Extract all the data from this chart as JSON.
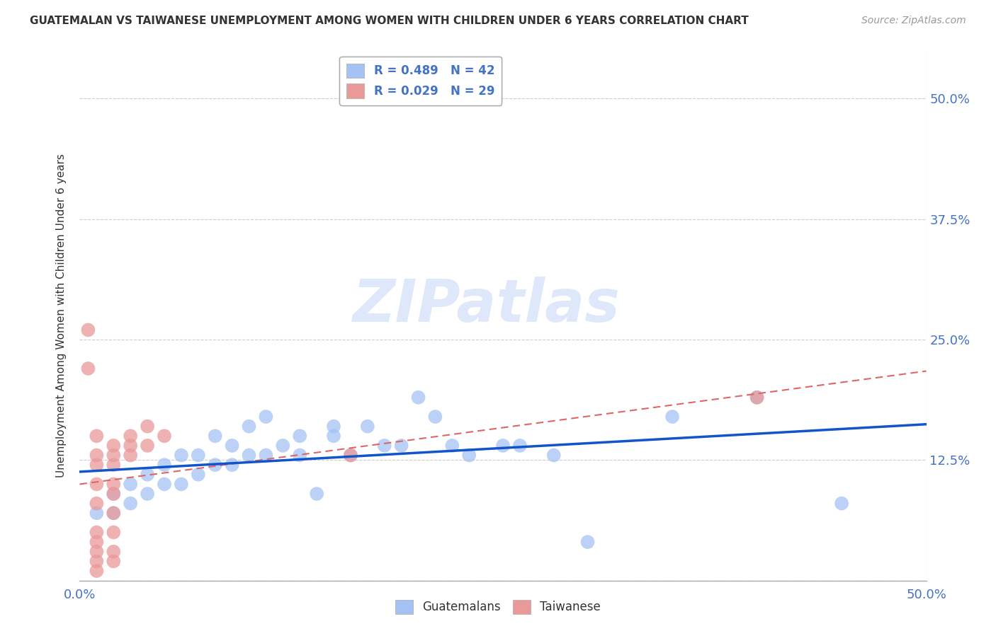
{
  "title": "GUATEMALAN VS TAIWANESE UNEMPLOYMENT AMONG WOMEN WITH CHILDREN UNDER 6 YEARS CORRELATION CHART",
  "source": "Source: ZipAtlas.com",
  "ylabel": "Unemployment Among Women with Children Under 6 years",
  "xlim": [
    0.0,
    0.5
  ],
  "ylim": [
    0.0,
    0.55
  ],
  "legend_guatemalans": "R = 0.489   N = 42",
  "legend_taiwanese": "R = 0.029   N = 29",
  "guatemalan_color": "#a4c2f4",
  "taiwanese_color": "#ea9999",
  "guatemalan_line_color": "#1155cc",
  "taiwanese_line_color": "#e06666",
  "watermark_text": "ZIPatlas",
  "guatemalan_points": [
    [
      0.01,
      0.07
    ],
    [
      0.02,
      0.07
    ],
    [
      0.02,
      0.09
    ],
    [
      0.03,
      0.08
    ],
    [
      0.03,
      0.1
    ],
    [
      0.04,
      0.09
    ],
    [
      0.04,
      0.11
    ],
    [
      0.05,
      0.1
    ],
    [
      0.05,
      0.12
    ],
    [
      0.06,
      0.1
    ],
    [
      0.06,
      0.13
    ],
    [
      0.07,
      0.11
    ],
    [
      0.07,
      0.13
    ],
    [
      0.08,
      0.12
    ],
    [
      0.08,
      0.15
    ],
    [
      0.09,
      0.12
    ],
    [
      0.09,
      0.14
    ],
    [
      0.1,
      0.13
    ],
    [
      0.1,
      0.16
    ],
    [
      0.11,
      0.13
    ],
    [
      0.11,
      0.17
    ],
    [
      0.12,
      0.14
    ],
    [
      0.13,
      0.13
    ],
    [
      0.13,
      0.15
    ],
    [
      0.14,
      0.09
    ],
    [
      0.15,
      0.15
    ],
    [
      0.15,
      0.16
    ],
    [
      0.16,
      0.13
    ],
    [
      0.17,
      0.16
    ],
    [
      0.18,
      0.14
    ],
    [
      0.19,
      0.14
    ],
    [
      0.2,
      0.19
    ],
    [
      0.21,
      0.17
    ],
    [
      0.22,
      0.14
    ],
    [
      0.23,
      0.13
    ],
    [
      0.25,
      0.14
    ],
    [
      0.26,
      0.14
    ],
    [
      0.28,
      0.13
    ],
    [
      0.3,
      0.04
    ],
    [
      0.35,
      0.17
    ],
    [
      0.4,
      0.19
    ],
    [
      0.45,
      0.08
    ]
  ],
  "taiwanese_points": [
    [
      0.005,
      0.26
    ],
    [
      0.005,
      0.22
    ],
    [
      0.01,
      0.15
    ],
    [
      0.01,
      0.13
    ],
    [
      0.01,
      0.12
    ],
    [
      0.01,
      0.1
    ],
    [
      0.01,
      0.08
    ],
    [
      0.01,
      0.05
    ],
    [
      0.01,
      0.04
    ],
    [
      0.01,
      0.03
    ],
    [
      0.01,
      0.02
    ],
    [
      0.01,
      0.01
    ],
    [
      0.02,
      0.14
    ],
    [
      0.02,
      0.13
    ],
    [
      0.02,
      0.12
    ],
    [
      0.02,
      0.1
    ],
    [
      0.02,
      0.09
    ],
    [
      0.02,
      0.07
    ],
    [
      0.02,
      0.05
    ],
    [
      0.02,
      0.03
    ],
    [
      0.02,
      0.02
    ],
    [
      0.03,
      0.15
    ],
    [
      0.03,
      0.14
    ],
    [
      0.03,
      0.13
    ],
    [
      0.04,
      0.16
    ],
    [
      0.04,
      0.14
    ],
    [
      0.05,
      0.15
    ],
    [
      0.4,
      0.19
    ],
    [
      0.16,
      0.13
    ]
  ],
  "ytick_vals": [
    0.0,
    0.125,
    0.25,
    0.375,
    0.5
  ],
  "ytick_labels": [
    "",
    "12.5%",
    "25.0%",
    "37.5%",
    "50.0%"
  ]
}
